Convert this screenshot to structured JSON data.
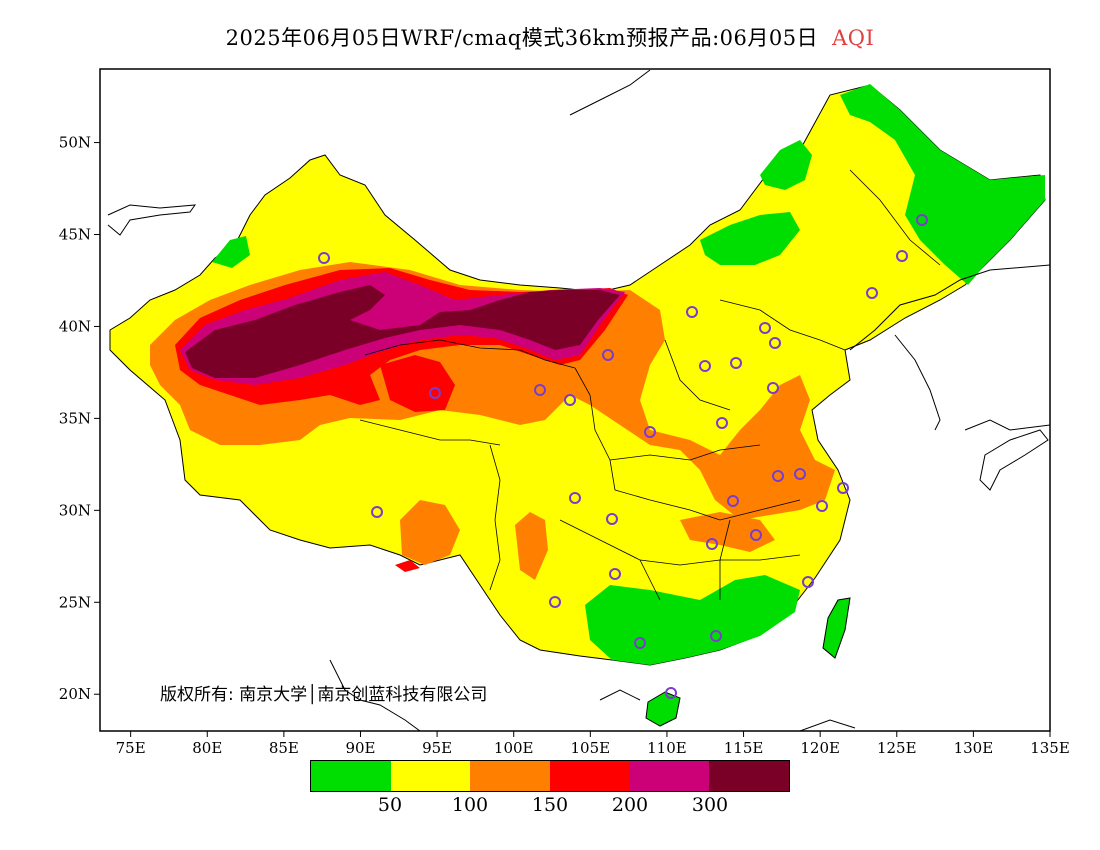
{
  "title": {
    "main": "2025年06月05日WRF/cmaq模式36km预报产品:06月05日",
    "variable": "AQI"
  },
  "copyright": "版权所有: 南京大学│南京创蓝科技有限公司",
  "axes": {
    "x_ticks": [
      "75E",
      "80E",
      "85E",
      "90E",
      "95E",
      "100E",
      "105E",
      "110E",
      "115E",
      "120E",
      "125E",
      "130E",
      "135E"
    ],
    "y_ticks": [
      "50N",
      "45N",
      "40N",
      "35N",
      "30N",
      "25N",
      "20N"
    ],
    "lon_range": [
      73,
      135
    ],
    "lat_range": [
      18,
      54
    ]
  },
  "legend": {
    "colors": [
      "#00dd00",
      "#ffff00",
      "#ff8000",
      "#ff0000",
      "#cc0077",
      "#7a0028"
    ],
    "labels": [
      "50",
      "100",
      "150",
      "200",
      "300"
    ]
  },
  "colors": {
    "good": "#00dd00",
    "moderate": "#ffff00",
    "sensitive": "#ff8000",
    "unhealthy": "#ff0000",
    "very_unhealthy": "#cc0077",
    "hazardous": "#7a0028",
    "boundary": "#000000",
    "station_marker": "#7a3ccf"
  }
}
